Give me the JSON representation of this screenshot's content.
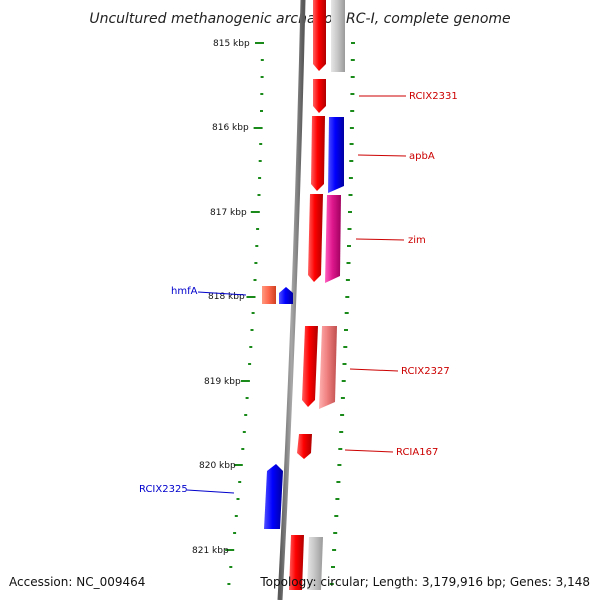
{
  "title": "Uncultured methanogenic archaeon RC-I, complete genome",
  "footer": {
    "accession": "Accession: NC_009464",
    "topology": "Topology: circular; Length: 3,179,916 bp; Genes: 3,148"
  },
  "colors": {
    "backbone": "#8c8c8c",
    "tick": "#1a8a1a",
    "label_right": "#cc0000",
    "label_left": "#0000cc"
  },
  "scale_labels": [
    "815 kbp",
    "816 kbp",
    "817 kbp",
    "818 kbp",
    "819 kbp",
    "820 kbp",
    "821 kbp"
  ],
  "gene_labels_right": [
    "RCIX2331",
    "apbA",
    "zim",
    "RCIX2327",
    "RCIA167"
  ],
  "gene_labels_left": [
    "hmfA",
    "RCIX2325"
  ],
  "features": [
    {
      "track": "inner",
      "color": "#ff0000",
      "strand": "minus",
      "label": ""
    },
    {
      "track": "inner",
      "color": "#ff0000",
      "strand": "minus",
      "label": "RCIX2331"
    },
    {
      "track": "inner",
      "color": "#ff0000",
      "strand": "minus",
      "label": "apbA"
    },
    {
      "track": "inner",
      "color": "#ff0000",
      "strand": "minus",
      "label": "zim"
    },
    {
      "track": "inner",
      "color": "#ff0000",
      "strand": "minus",
      "label": "RCIX2327"
    },
    {
      "track": "inner",
      "color": "#ff0000",
      "strand": "minus",
      "label": "RCIA167"
    },
    {
      "track": "inner",
      "color": "#ff0000",
      "strand": "minus",
      "label": ""
    },
    {
      "track": "outer",
      "color": "#c8c8c8",
      "strand": "plus",
      "label": ""
    },
    {
      "track": "outer",
      "color": "#0000ff",
      "strand": "plus",
      "label": "apbA"
    },
    {
      "track": "outer",
      "color": "#e0188f",
      "strand": "plus",
      "label": "zim"
    },
    {
      "track": "outer",
      "color": "#f08080",
      "strand": "plus",
      "label": "RCIX2327"
    },
    {
      "track": "outer",
      "color": "#c8c8c8",
      "strand": "plus",
      "label": ""
    },
    {
      "track": "left",
      "color": "#ff6a50",
      "strand": "minus",
      "label": "hmfA"
    },
    {
      "track": "left",
      "color": "#0000ff",
      "strand": "plus",
      "label": "hmfA"
    },
    {
      "track": "left",
      "color": "#0000ff",
      "strand": "plus",
      "label": "RCIX2325"
    }
  ]
}
